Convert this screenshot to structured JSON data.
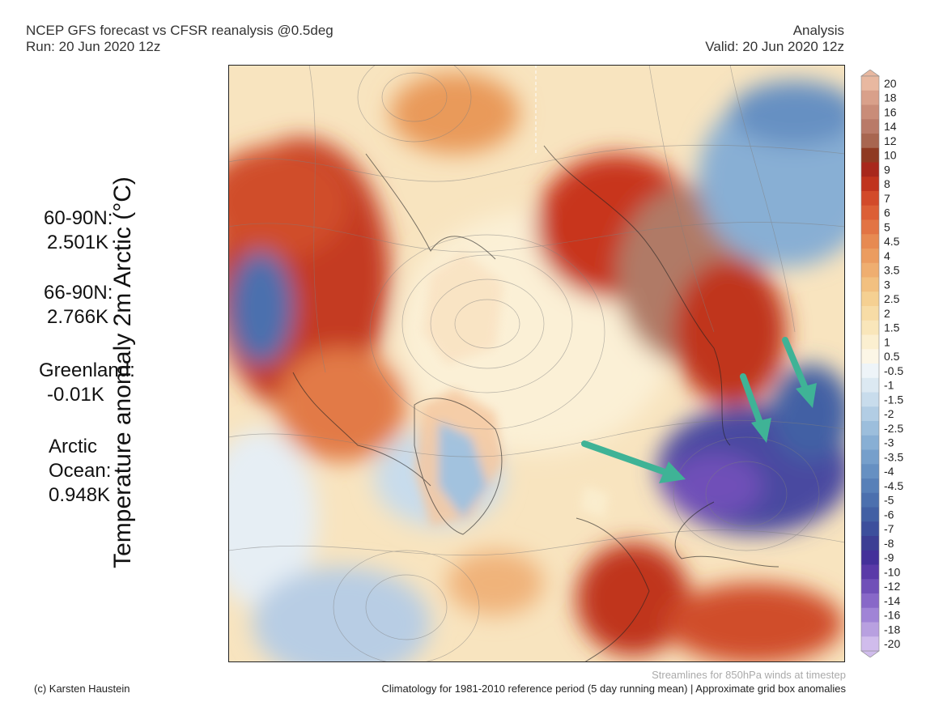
{
  "header": {
    "title": "NCEP GFS forecast vs CFSR reanalysis @0.5deg",
    "run": "Run: 20 Jun 2020 12z",
    "type": "Analysis",
    "valid": "Valid: 20 Jun 2020 12z"
  },
  "vertical_label": "Temperature anomaly 2m Arctic (°C)",
  "stats": [
    {
      "label": "60-90N:",
      "value": "2.501K"
    },
    {
      "label": "66-90N:",
      "value": "2.766K"
    },
    {
      "label": "Greenland:",
      "value": "-0.01K"
    },
    {
      "label1": "Arctic",
      "label2": "Ocean:",
      "value": "0.948K"
    }
  ],
  "colorbar": {
    "labels": [
      "20",
      "18",
      "16",
      "14",
      "12",
      "10",
      "9",
      "8",
      "7",
      "6",
      "5",
      "4.5",
      "4",
      "3.5",
      "3",
      "2.5",
      "2",
      "1.5",
      "1",
      "0.5",
      "-0.5",
      "-1",
      "-1.5",
      "-2",
      "-2.5",
      "-3",
      "-3.5",
      "-4",
      "-4.5",
      "-5",
      "-6",
      "-7",
      "-8",
      "-9",
      "-10",
      "-12",
      "-14",
      "-16",
      "-18",
      "-20"
    ],
    "colors": [
      "#e8b8a0",
      "#d9a08a",
      "#c98c78",
      "#b97a68",
      "#a86650",
      "#8f3a22",
      "#a8281c",
      "#c0341e",
      "#d24a2a",
      "#dc5f36",
      "#e27444",
      "#e78a52",
      "#eb9c60",
      "#efae70",
      "#f2c080",
      "#f5d092",
      "#f7dca6",
      "#f9e6ba",
      "#fbefd0",
      "#fcf6e6",
      "#eef4f8",
      "#dce9f2",
      "#c8dcec",
      "#b2cde4",
      "#9cbedc",
      "#88afd4",
      "#769fcb",
      "#6690c2",
      "#5880b8",
      "#4c70ae",
      "#4260a4",
      "#3c4f9c",
      "#3c3e94",
      "#44309a",
      "#5a3aa8",
      "#7050b8",
      "#8868c8",
      "#a084d6",
      "#b8a0e0",
      "#d0bcec"
    ]
  },
  "arrows_color": "#3fb396",
  "footer": {
    "credit": "(c) Karsten Haustein",
    "streamlines": "Streamlines for 850hPa winds at timestep",
    "climatology": "Climatology for 1981-2010 reference period (5 day running mean) | Approximate grid box anomalies"
  }
}
